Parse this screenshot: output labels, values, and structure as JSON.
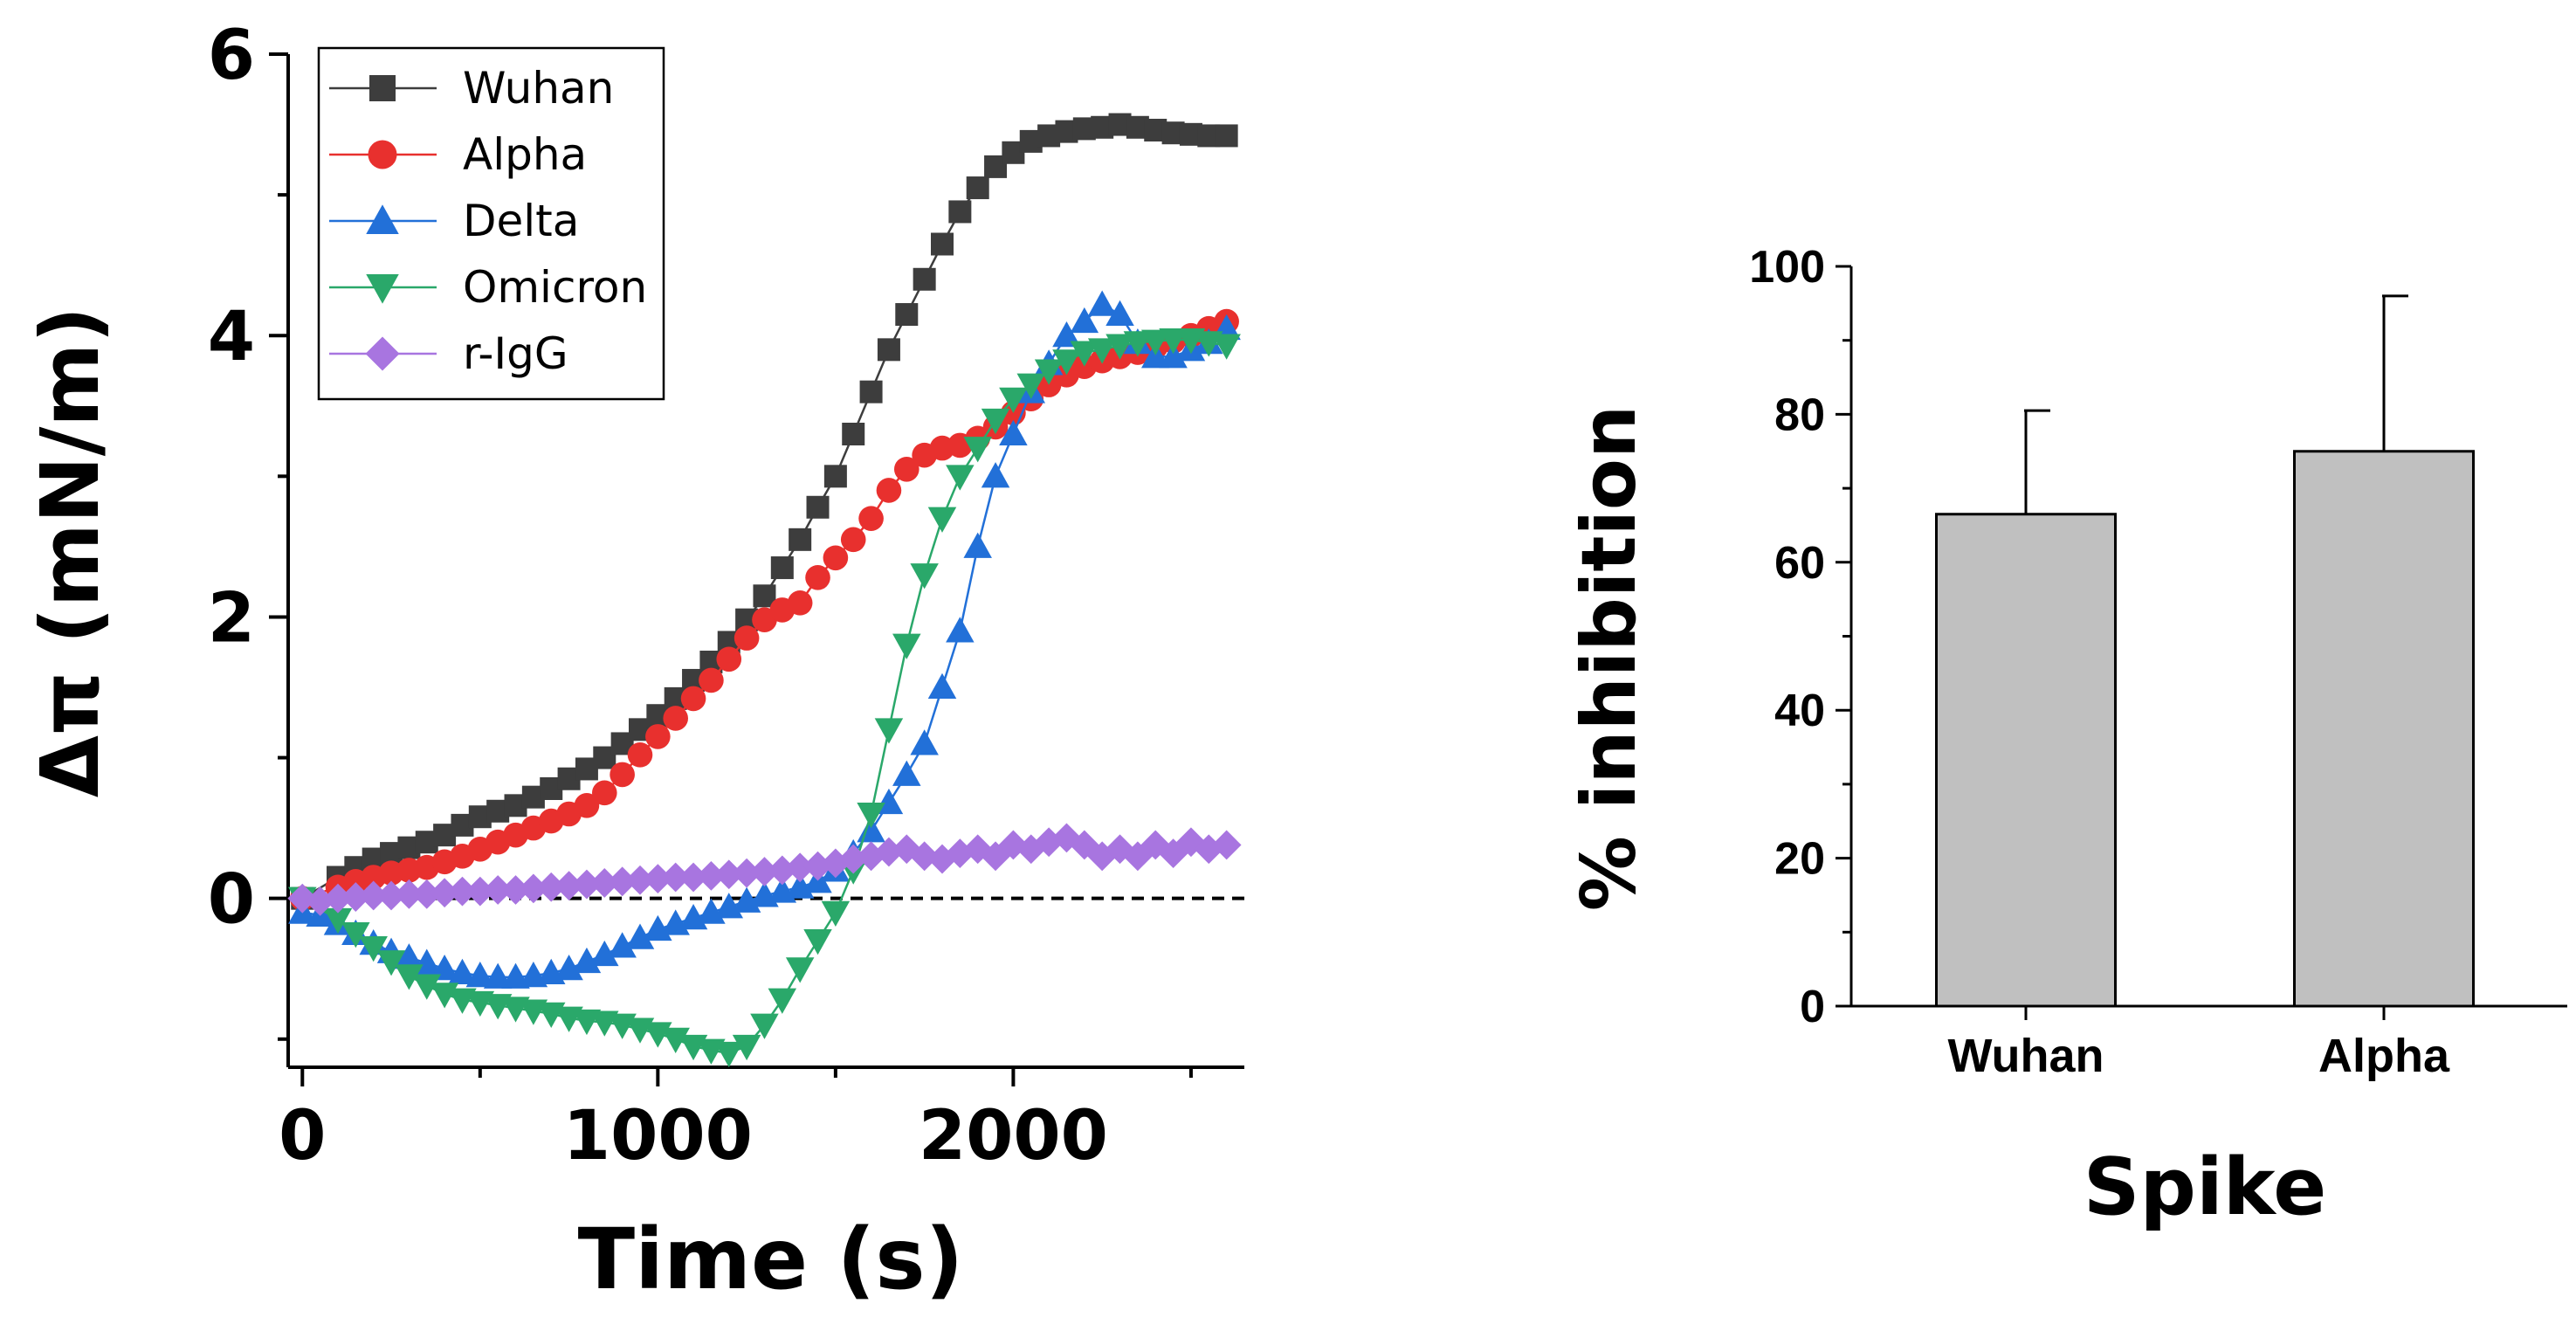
{
  "chart_data": [
    {
      "type": "line",
      "title": "",
      "xlabel": "Time (s)",
      "ylabel": "Δπ (mN/m)",
      "xlim": [
        -40,
        2650
      ],
      "ylim": [
        -1.2,
        6.0
      ],
      "xticks": [
        0,
        1000,
        2000
      ],
      "xtick_labels": [
        "0",
        "1000",
        "2000"
      ],
      "yticks": [
        0,
        2,
        4,
        6
      ],
      "ytick_labels": [
        "0",
        "2",
        "4",
        "6"
      ],
      "reference_line": {
        "y": 0,
        "style": "dashed"
      },
      "legend": {
        "position": "top-left"
      },
      "series": [
        {
          "name": "Wuhan",
          "marker": "square",
          "color": "#3d3d3d",
          "x": [
            0,
            100,
            150,
            200,
            250,
            300,
            350,
            400,
            450,
            500,
            550,
            600,
            650,
            700,
            750,
            800,
            850,
            900,
            950,
            1000,
            1050,
            1100,
            1150,
            1200,
            1250,
            1300,
            1350,
            1400,
            1450,
            1500,
            1550,
            1600,
            1650,
            1700,
            1750,
            1800,
            1850,
            1900,
            1950,
            2000,
            2050,
            2100,
            2150,
            2200,
            2250,
            2300,
            2350,
            2400,
            2450,
            2500,
            2550,
            2600
          ],
          "y": [
            0.0,
            0.15,
            0.22,
            0.28,
            0.32,
            0.36,
            0.4,
            0.45,
            0.52,
            0.58,
            0.62,
            0.66,
            0.72,
            0.78,
            0.85,
            0.92,
            1.0,
            1.1,
            1.2,
            1.3,
            1.42,
            1.55,
            1.68,
            1.82,
            1.98,
            2.15,
            2.35,
            2.55,
            2.78,
            3.0,
            3.3,
            3.6,
            3.9,
            4.15,
            4.4,
            4.65,
            4.88,
            5.05,
            5.2,
            5.3,
            5.38,
            5.42,
            5.45,
            5.47,
            5.48,
            5.5,
            5.48,
            5.46,
            5.44,
            5.43,
            5.42,
            5.42
          ]
        },
        {
          "name": "Alpha",
          "marker": "circle",
          "color": "#e8302e",
          "x": [
            0,
            100,
            150,
            200,
            250,
            300,
            350,
            400,
            450,
            500,
            550,
            600,
            650,
            700,
            750,
            800,
            850,
            900,
            950,
            1000,
            1050,
            1100,
            1150,
            1200,
            1250,
            1300,
            1350,
            1400,
            1450,
            1500,
            1550,
            1600,
            1650,
            1700,
            1750,
            1800,
            1850,
            1900,
            1950,
            2000,
            2050,
            2100,
            2150,
            2200,
            2250,
            2300,
            2350,
            2400,
            2450,
            2500,
            2550,
            2600
          ],
          "y": [
            0.0,
            0.08,
            0.12,
            0.15,
            0.18,
            0.2,
            0.22,
            0.26,
            0.3,
            0.35,
            0.4,
            0.45,
            0.5,
            0.55,
            0.6,
            0.66,
            0.75,
            0.88,
            1.02,
            1.15,
            1.28,
            1.42,
            1.55,
            1.7,
            1.85,
            1.98,
            2.05,
            2.1,
            2.28,
            2.42,
            2.55,
            2.7,
            2.9,
            3.05,
            3.15,
            3.2,
            3.22,
            3.27,
            3.35,
            3.45,
            3.55,
            3.65,
            3.72,
            3.78,
            3.82,
            3.85,
            3.88,
            3.92,
            3.96,
            4.0,
            4.05,
            4.1
          ]
        },
        {
          "name": "Delta",
          "marker": "triangle-up",
          "color": "#2270d8",
          "x": [
            0,
            50,
            100,
            150,
            200,
            250,
            300,
            350,
            400,
            450,
            500,
            550,
            600,
            650,
            700,
            750,
            800,
            850,
            900,
            950,
            1000,
            1050,
            1100,
            1150,
            1200,
            1250,
            1300,
            1350,
            1400,
            1450,
            1500,
            1550,
            1600,
            1650,
            1700,
            1750,
            1800,
            1850,
            1900,
            1950,
            2000,
            2050,
            2100,
            2150,
            2200,
            2250,
            2300,
            2350,
            2400,
            2450,
            2500,
            2550,
            2600
          ],
          "y": [
            -0.1,
            -0.12,
            -0.18,
            -0.25,
            -0.32,
            -0.38,
            -0.42,
            -0.46,
            -0.5,
            -0.53,
            -0.55,
            -0.56,
            -0.56,
            -0.55,
            -0.53,
            -0.5,
            -0.45,
            -0.4,
            -0.34,
            -0.28,
            -0.22,
            -0.18,
            -0.14,
            -0.1,
            -0.06,
            -0.02,
            0.02,
            0.05,
            0.08,
            0.12,
            0.2,
            0.32,
            0.48,
            0.68,
            0.88,
            1.1,
            1.5,
            1.9,
            2.5,
            3.0,
            3.3,
            3.6,
            3.8,
            4.0,
            4.1,
            4.22,
            4.15,
            3.95,
            3.85,
            3.85,
            3.9,
            3.95,
            4.05
          ]
        },
        {
          "name": "Omicron",
          "marker": "triangle-down",
          "color": "#2aa86a",
          "x": [
            0,
            100,
            150,
            200,
            250,
            300,
            350,
            400,
            450,
            500,
            550,
            600,
            650,
            700,
            750,
            800,
            850,
            900,
            950,
            1000,
            1050,
            1100,
            1150,
            1200,
            1250,
            1300,
            1350,
            1400,
            1450,
            1500,
            1550,
            1600,
            1650,
            1700,
            1750,
            1800,
            1850,
            1900,
            1950,
            2000,
            2050,
            2100,
            2150,
            2200,
            2250,
            2300,
            2350,
            2400,
            2450,
            2500,
            2550,
            2600
          ],
          "y": [
            0.0,
            -0.15,
            -0.25,
            -0.35,
            -0.45,
            -0.55,
            -0.62,
            -0.68,
            -0.72,
            -0.74,
            -0.76,
            -0.78,
            -0.8,
            -0.82,
            -0.85,
            -0.87,
            -0.88,
            -0.9,
            -0.93,
            -0.96,
            -1.0,
            -1.05,
            -1.08,
            -1.1,
            -1.05,
            -0.9,
            -0.72,
            -0.5,
            -0.3,
            -0.1,
            0.2,
            0.6,
            1.2,
            1.8,
            2.3,
            2.7,
            3.0,
            3.2,
            3.4,
            3.55,
            3.65,
            3.75,
            3.82,
            3.88,
            3.9,
            3.93,
            3.95,
            3.96,
            3.97,
            3.97,
            3.95,
            3.93
          ]
        },
        {
          "name": "r-IgG",
          "marker": "diamond",
          "color": "#a875e0",
          "x": [
            0,
            50,
            100,
            150,
            200,
            250,
            300,
            350,
            400,
            450,
            500,
            550,
            600,
            650,
            700,
            750,
            800,
            850,
            900,
            950,
            1000,
            1050,
            1100,
            1150,
            1200,
            1250,
            1300,
            1350,
            1400,
            1450,
            1500,
            1550,
            1600,
            1650,
            1700,
            1750,
            1800,
            1850,
            1900,
            1950,
            2000,
            2050,
            2100,
            2150,
            2200,
            2250,
            2300,
            2350,
            2400,
            2450,
            2500,
            2550,
            2600
          ],
          "y": [
            0.0,
            -0.02,
            0.0,
            0.01,
            0.02,
            0.02,
            0.03,
            0.03,
            0.04,
            0.05,
            0.05,
            0.06,
            0.06,
            0.07,
            0.08,
            0.09,
            0.1,
            0.11,
            0.12,
            0.13,
            0.14,
            0.15,
            0.15,
            0.16,
            0.17,
            0.18,
            0.19,
            0.2,
            0.22,
            0.23,
            0.25,
            0.28,
            0.3,
            0.33,
            0.35,
            0.3,
            0.28,
            0.32,
            0.35,
            0.3,
            0.38,
            0.35,
            0.4,
            0.43,
            0.38,
            0.3,
            0.35,
            0.3,
            0.38,
            0.32,
            0.4,
            0.35,
            0.38
          ]
        }
      ]
    },
    {
      "type": "bar",
      "title": "",
      "xlabel": "Spike",
      "ylabel": "% inhibition",
      "categories": [
        "Wuhan",
        "Alpha"
      ],
      "values": [
        66.5,
        75.0
      ],
      "error_bars": [
        14.0,
        21.0
      ],
      "bar_color": "#c0c0c0",
      "ylim": [
        0,
        100
      ],
      "yticks": [
        0,
        20,
        40,
        60,
        80,
        100
      ],
      "ytick_labels": [
        "0",
        "20",
        "40",
        "60",
        "80",
        "100"
      ]
    }
  ]
}
